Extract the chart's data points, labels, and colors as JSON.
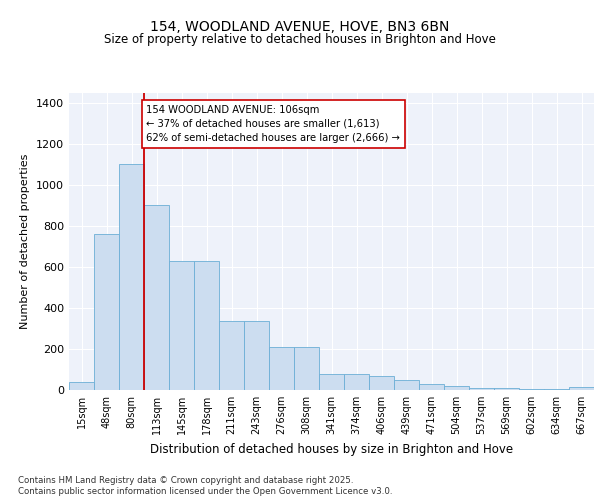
{
  "title1": "154, WOODLAND AVENUE, HOVE, BN3 6BN",
  "title2": "Size of property relative to detached houses in Brighton and Hove",
  "xlabel": "Distribution of detached houses by size in Brighton and Hove",
  "ylabel": "Number of detached properties",
  "categories": [
    "15sqm",
    "48sqm",
    "80sqm",
    "113sqm",
    "145sqm",
    "178sqm",
    "211sqm",
    "243sqm",
    "276sqm",
    "308sqm",
    "341sqm",
    "374sqm",
    "406sqm",
    "439sqm",
    "471sqm",
    "504sqm",
    "537sqm",
    "569sqm",
    "602sqm",
    "634sqm",
    "667sqm"
  ],
  "values": [
    38,
    760,
    1100,
    900,
    630,
    630,
    335,
    335,
    210,
    210,
    80,
    80,
    70,
    50,
    30,
    20,
    10,
    10,
    5,
    3,
    15
  ],
  "bar_color": "#ccddf0",
  "bar_edge_color": "#6baed6",
  "vline_color": "#cc0000",
  "annotation_text": "154 WOODLAND AVENUE: 106sqm\n← 37% of detached houses are smaller (1,613)\n62% of semi-detached houses are larger (2,666) →",
  "annotation_box_color": "#ffffff",
  "annotation_box_edge": "#cc0000",
  "ylim": [
    0,
    1450
  ],
  "yticks": [
    0,
    200,
    400,
    600,
    800,
    1000,
    1200,
    1400
  ],
  "footer1": "Contains HM Land Registry data © Crown copyright and database right 2025.",
  "footer2": "Contains public sector information licensed under the Open Government Licence v3.0.",
  "bg_color": "#eef2fa",
  "fig_bg": "#ffffff"
}
